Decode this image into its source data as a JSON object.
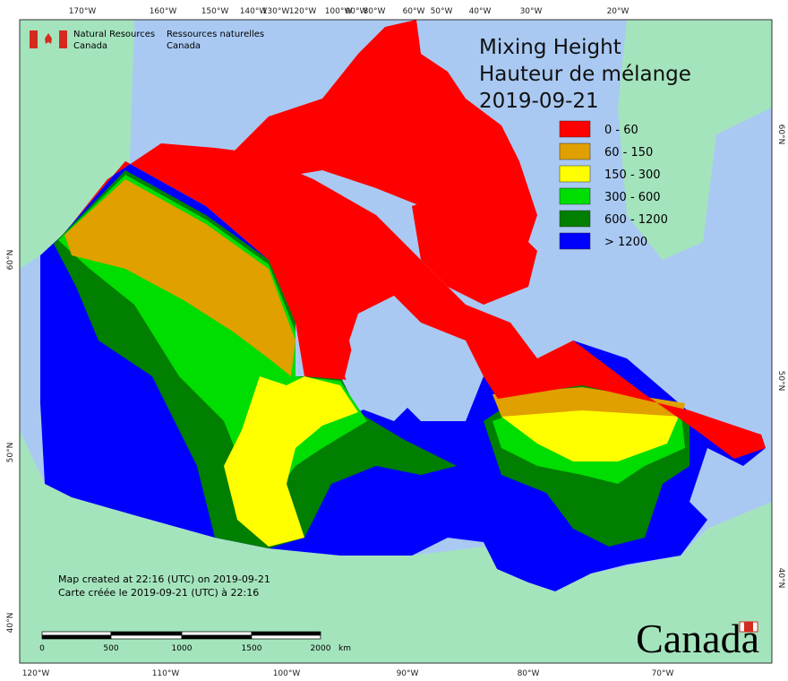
{
  "header": {
    "title_en": "Mixing Height",
    "title_fr": "Hauteur de mélange",
    "date": "2019-09-21"
  },
  "agency": {
    "en": [
      "Natural Resources",
      "Canada"
    ],
    "fr": [
      "Ressources naturelles",
      "Canada"
    ]
  },
  "legend": [
    {
      "label": "0 - 60",
      "color": "#ff0000"
    },
    {
      "label": "60 - 150",
      "color": "#dfa000"
    },
    {
      "label": "150 - 300",
      "color": "#ffff00"
    },
    {
      "label": "300 - 600",
      "color": "#00dd00"
    },
    {
      "label": "600 - 1200",
      "color": "#007f00"
    },
    {
      "label": "> 1200",
      "color": "#0000ff"
    }
  ],
  "notes": [
    "Map created at 22:16 (UTC) on 2019-09-21",
    "Carte créée le 2019-09-21 (UTC) à 22:16"
  ],
  "scale_bar": {
    "ticks": [
      "0",
      "500",
      "1000",
      "1500",
      "2000"
    ],
    "unit": "km"
  },
  "graticule": {
    "top": [
      "170°W",
      "160°W",
      "150°W",
      "140°W",
      "130°W",
      "120°W",
      "100°W",
      "90°W",
      "80°W",
      "60°W",
      "50°W",
      "40°W",
      "30°W",
      "20°W"
    ],
    "bottom": [
      "120°W",
      "110°W",
      "100°W",
      "90°W",
      "80°W",
      "70°W"
    ],
    "left": [
      "60°N",
      "50°N",
      "40°N"
    ],
    "right": [
      "60°N",
      "50°N",
      "40°N"
    ]
  },
  "wordmark": "Canada"
}
